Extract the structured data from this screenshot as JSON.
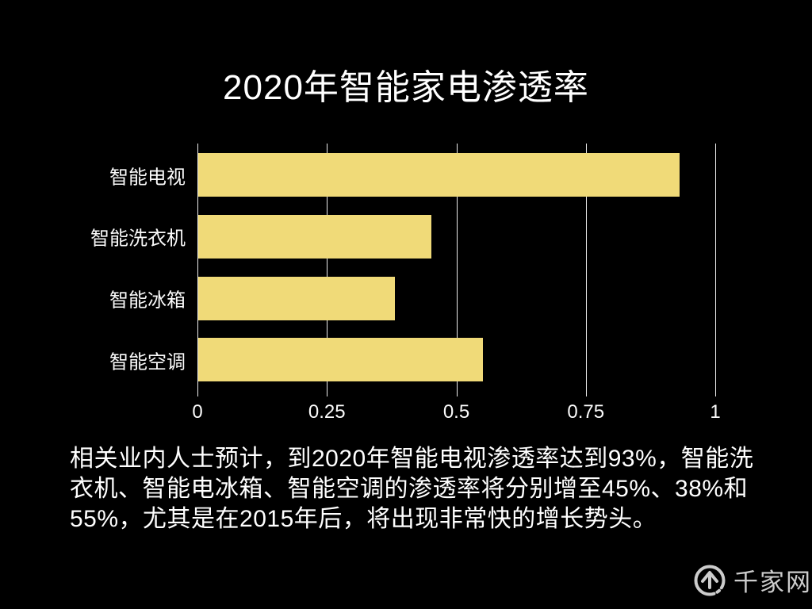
{
  "title": "2020年智能家电渗透率",
  "chart_data": {
    "type": "bar",
    "orientation": "horizontal",
    "title": "2020年智能家电渗透率",
    "categories": [
      "智能电视",
      "智能洗衣机",
      "智能冰箱",
      "智能空调"
    ],
    "values": [
      0.93,
      0.45,
      0.38,
      0.55
    ],
    "xlim": [
      0,
      1
    ],
    "x_ticks": [
      0,
      0.25,
      0.5,
      0.75,
      1
    ],
    "x_tick_labels": [
      "0",
      "0.25",
      "0.5",
      "0.75",
      "1"
    ],
    "bar_color": "#f0da78",
    "gridline_color": "#ececec",
    "grid": true,
    "legend": false,
    "background_color": "#000000",
    "text_color": "#ffffff"
  },
  "caption": {
    "text": "相关业内人士预计，到2020年智能电视渗透率达到93%，智能洗衣机、智能电冰箱、智能空调的渗透率将分别增至45%、38%和55%，尤其是在2015年后，将出现非常快的增长势头。",
    "lines": [
      "相关业内人士预计，到2020年智能电视渗透率达到93%，智能洗",
      "衣机、智能电冰箱、智能空调的渗透率将分别增至45%、38%和",
      "55%，尤其是在2015年后，将出现非常快的增长势头。"
    ]
  },
  "watermark": {
    "text": "千家网",
    "icon": "up-arrow-circle-icon",
    "color": "#cccccc"
  }
}
